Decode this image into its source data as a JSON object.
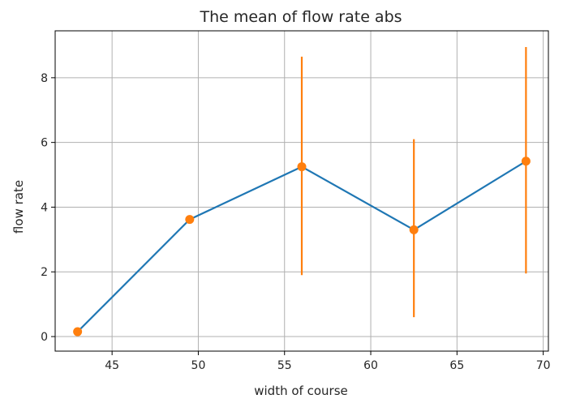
{
  "chart_data": {
    "type": "line",
    "title": "The mean of flow rate abs",
    "xlabel": "width of course",
    "ylabel": "flow rate",
    "xlim": [
      41.7,
      70.3
    ],
    "ylim": [
      -0.45,
      9.45
    ],
    "xticks": [
      45,
      50,
      55,
      60,
      65,
      70
    ],
    "yticks": [
      0,
      2,
      4,
      6,
      8
    ],
    "grid": true,
    "legend": "none",
    "series": [
      {
        "color": "#1f77b4",
        "marker_color": "#ff7f0e",
        "errorbar_color": "#ff7f0e",
        "points": [
          {
            "x": 43.0,
            "y": 0.15,
            "err_low": 0.15,
            "err_high": 0.15
          },
          {
            "x": 49.5,
            "y": 3.62,
            "err_low": 3.62,
            "err_high": 3.62
          },
          {
            "x": 56.0,
            "y": 5.25,
            "err_low": 1.9,
            "err_high": 8.65
          },
          {
            "x": 62.5,
            "y": 3.3,
            "err_low": 0.6,
            "err_high": 6.1
          },
          {
            "x": 69.0,
            "y": 5.42,
            "err_low": 1.95,
            "err_high": 8.95
          }
        ]
      }
    ]
  }
}
